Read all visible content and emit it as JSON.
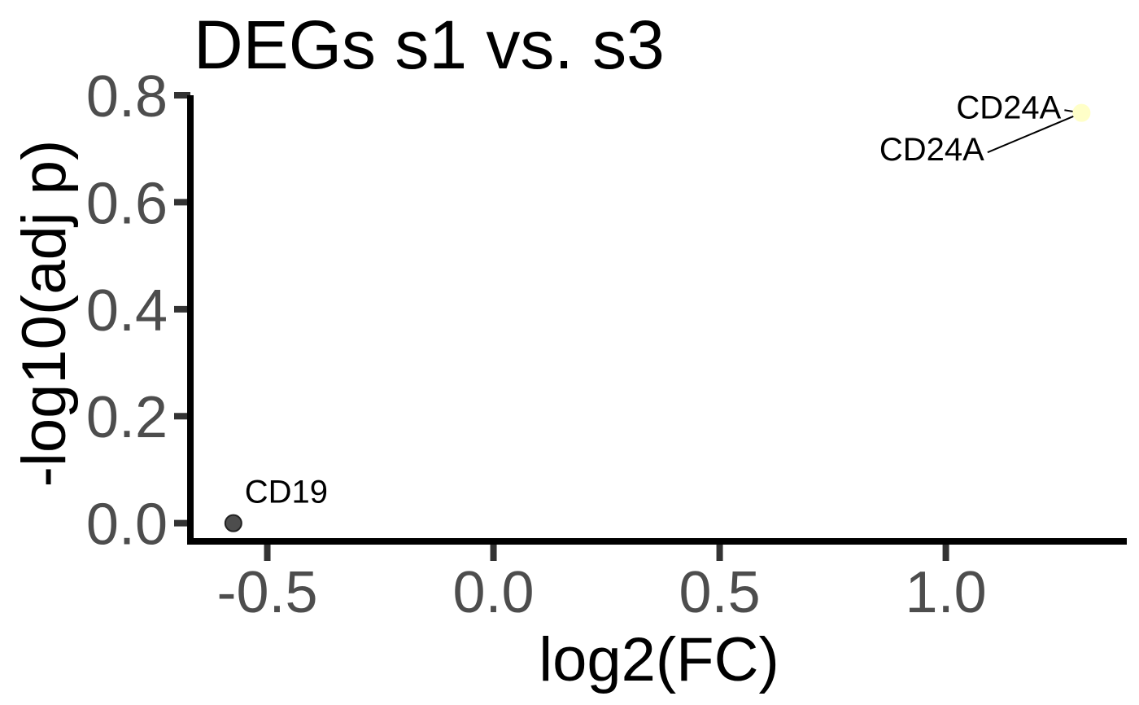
{
  "chart_data": {
    "type": "scatter",
    "title": "DEGs s1 vs. s3",
    "xlabel": "log2(FC)",
    "ylabel": "-log10(adj p)",
    "xlim": [
      -0.67,
      1.4
    ],
    "ylim": [
      -0.034,
      0.8
    ],
    "xticks": [
      {
        "value": -0.5,
        "label": "-0.5"
      },
      {
        "value": 0.0,
        "label": "0.0"
      },
      {
        "value": 0.5,
        "label": "0.5"
      },
      {
        "value": 1.0,
        "label": "1.0"
      }
    ],
    "yticks": [
      {
        "value": 0.0,
        "label": "0.0"
      },
      {
        "value": 0.2,
        "label": "0.2"
      },
      {
        "value": 0.4,
        "label": "0.4"
      },
      {
        "value": 0.6,
        "label": "0.6"
      },
      {
        "value": 0.8,
        "label": "0.8"
      }
    ],
    "grid": false,
    "legend": "none",
    "points": [
      {
        "x": -0.575,
        "y": 0.0,
        "color": "#4d4d4d",
        "edge": "#222222"
      },
      {
        "x": 1.3,
        "y": 0.767,
        "color": "#ffffc8",
        "edge": "#ffffc8"
      }
    ],
    "labels": [
      {
        "text": "CD19",
        "x": -0.575,
        "y": 0.0,
        "tx": -0.55,
        "ty": 0.038,
        "connector": false
      },
      {
        "text": "CD24A",
        "x": 1.3,
        "y": 0.767,
        "tx": 1.255,
        "ty": 0.757,
        "connector": true,
        "anchor": "end"
      },
      {
        "text": "CD24A",
        "x": 1.3,
        "y": 0.767,
        "tx": 1.085,
        "ty": 0.678,
        "connector": true,
        "anchor": "end"
      }
    ]
  }
}
